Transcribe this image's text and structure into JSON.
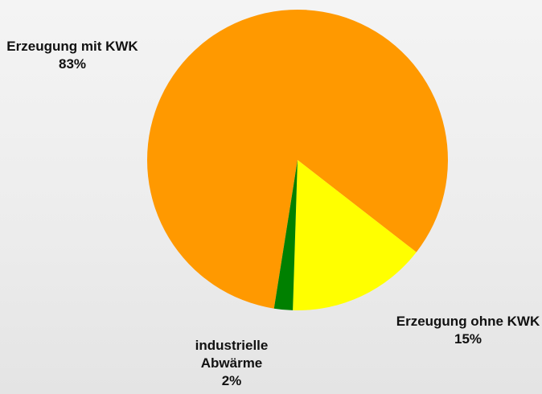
{
  "chart_data": {
    "type": "pie",
    "categories": [
      "Erzeugung mit KWK",
      "Erzeugung ohne KWK",
      "industrielle Abwärme"
    ],
    "values": [
      83,
      15,
      2
    ],
    "value_labels": [
      "83%",
      "15%",
      "2%"
    ],
    "colors": [
      "#ff9900",
      "#ffff00",
      "#008000"
    ]
  }
}
